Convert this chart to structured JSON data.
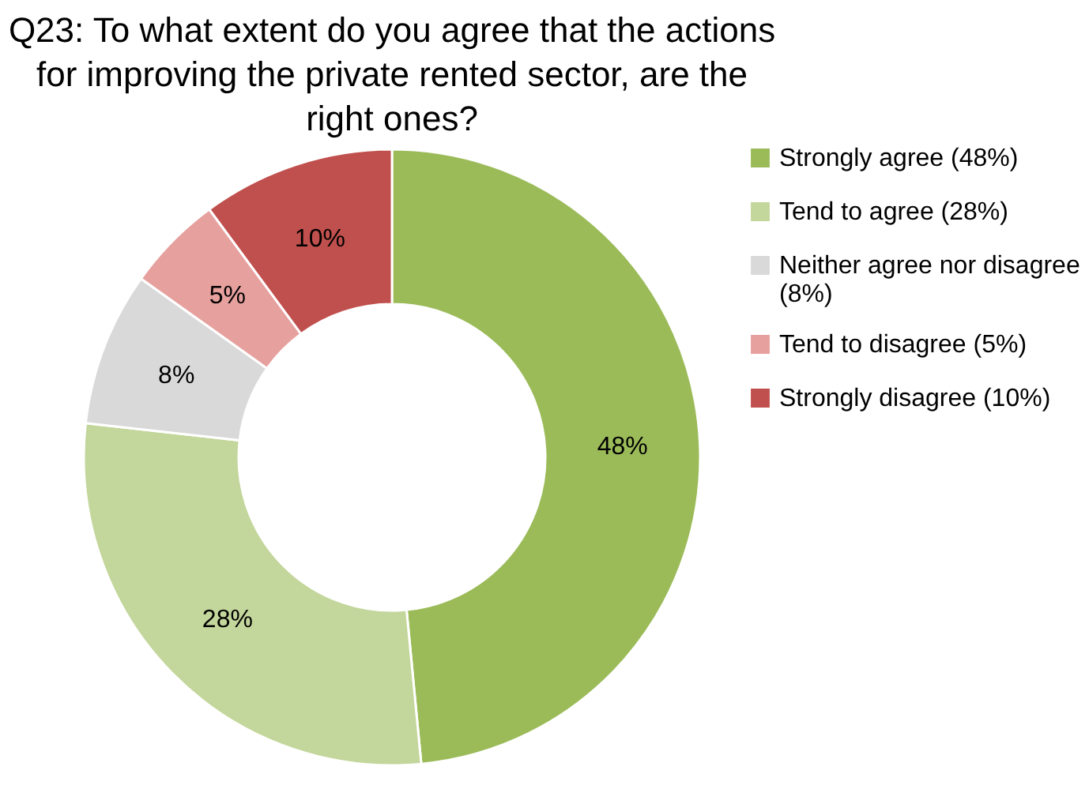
{
  "chart_data": {
    "type": "donut",
    "title": "Q23: To what extent do you agree that the actions for improving the private rented sector, are the right ones?",
    "categories": [
      "Strongly agree (48%)",
      "Tend to agree (28%)",
      "Neither agree nor disagree (8%)",
      "Tend to disagree (5%)",
      "Strongly disagree (10%)"
    ],
    "values": [
      48,
      28,
      8,
      5,
      10
    ],
    "value_labels": [
      "48%",
      "28%",
      "8%",
      "5%",
      "10%"
    ],
    "colors": [
      "#9bbb59",
      "#c3d69b",
      "#d9d9d9",
      "#e6a09e",
      "#c0504d"
    ],
    "legend": "right"
  }
}
